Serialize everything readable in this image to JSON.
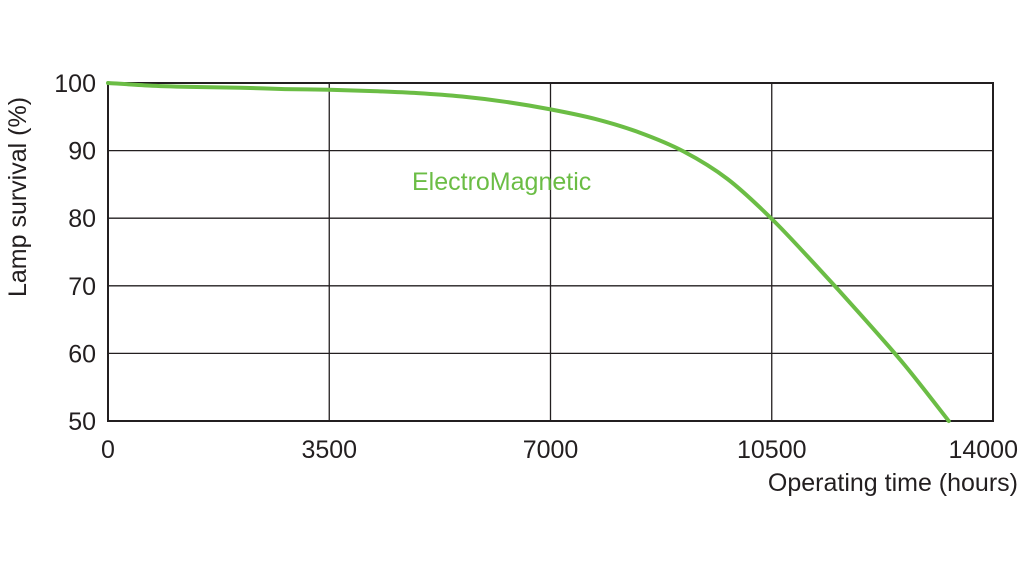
{
  "chart_data": {
    "type": "line",
    "title": "",
    "xlabel": "Operating time (hours)",
    "ylabel": "Lamp survival  (%)",
    "xlim": [
      0,
      14000
    ],
    "ylim": [
      50,
      100
    ],
    "x_ticks": [
      "0",
      "3500",
      "7000",
      "10500",
      "14000"
    ],
    "y_ticks": [
      "100",
      "90",
      "80",
      "70",
      "60",
      "50"
    ],
    "x_tick_values": [
      0,
      3500,
      7000,
      10500,
      14000
    ],
    "y_tick_values": [
      100,
      90,
      80,
      70,
      60,
      50
    ],
    "grid": true,
    "series": [
      {
        "name": "ElectroMagnetic",
        "color": "#6bbd45",
        "x": [
          0,
          700,
          1400,
          2100,
          2800,
          3500,
          4200,
          4900,
          5600,
          6300,
          7000,
          7700,
          8400,
          9100,
          9800,
          10500,
          11200,
          11900,
          12600,
          13300
        ],
        "y": [
          100,
          99.6,
          99.4,
          99.3,
          99.1,
          99.0,
          98.8,
          98.5,
          98.0,
          97.2,
          96.1,
          94.7,
          92.7,
          89.9,
          85.8,
          79.9,
          73.0,
          65.8,
          58.3,
          50.0
        ]
      }
    ]
  }
}
